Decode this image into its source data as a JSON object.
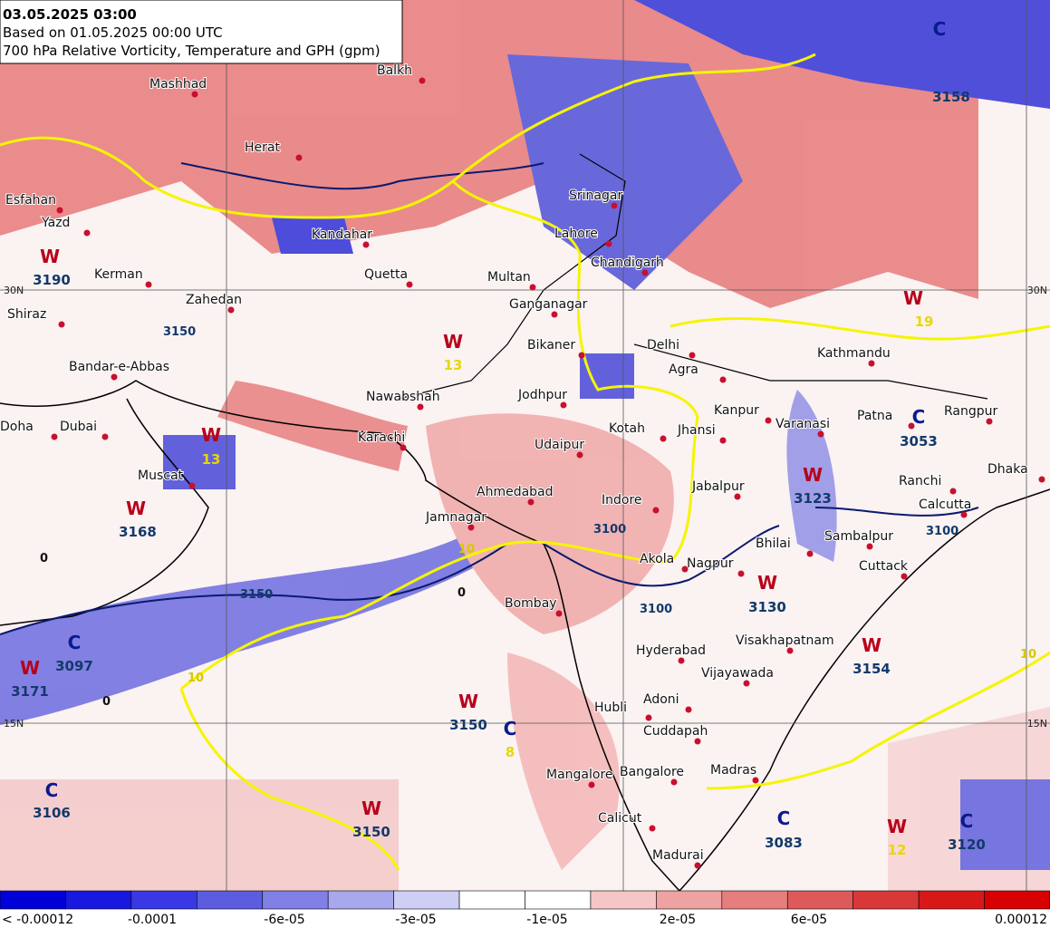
{
  "header": {
    "date": "03.05.2025 03:00",
    "based_on": "Based on 01.05.2025 00:00 UTC",
    "title": "700 hPa Relative Vorticity, Temperature and GPH (gpm)"
  },
  "cities": [
    "Mashhad",
    "Herat",
    "Balkh",
    "Esfahan",
    "Yazd",
    "Kandahar",
    "Quetta",
    "Kerman",
    "Zahedan",
    "Shiraz",
    "Bandar-e-Abbas",
    "Nawabshah",
    "Karachi",
    "Doha",
    "Dubai",
    "Muscat",
    "Multan",
    "Lahore",
    "Srinagar",
    "Chandigarh",
    "Ganganagar",
    "Bikaner",
    "Delhi",
    "Agra",
    "Jodhpur",
    "Kotah",
    "Jhansi",
    "Kanpur",
    "Varanasi",
    "Patna",
    "Rangpur",
    "Kathmandu",
    "Udaipur",
    "Ahmedabad",
    "Jamnagar",
    "Indore",
    "Jabalpur",
    "Bhilai",
    "Sambalpur",
    "Ranchi",
    "Calcutta",
    "Dhaka",
    "Cuttack",
    "Nagpur",
    "Akola",
    "Bombay",
    "Hyderabad",
    "Visakhapatnam",
    "Vijayawada",
    "Hubli",
    "Adoni",
    "Cuddapah",
    "Mangalore",
    "Bangalore",
    "Madras",
    "Calicut",
    "Madurai"
  ],
  "centers": [
    {
      "letter": "W",
      "value": 3190
    },
    {
      "letter": "W",
      "value": 3168
    },
    {
      "letter": "W",
      "value": 13
    },
    {
      "letter": "W",
      "value": 13
    },
    {
      "letter": "W",
      "value": 3123
    },
    {
      "letter": "W",
      "value": 3130
    },
    {
      "letter": "W",
      "value": 3154
    },
    {
      "letter": "W",
      "value": 3150
    },
    {
      "letter": "W",
      "value": 3150
    },
    {
      "letter": "W",
      "value": 12
    },
    {
      "letter": "W",
      "value": 3171
    },
    {
      "letter": "W",
      "value": 19
    },
    {
      "letter": "C",
      "value": 3097
    },
    {
      "letter": "C",
      "value": 3053
    },
    {
      "letter": "C",
      "value": 8
    },
    {
      "letter": "C",
      "value": 3083
    },
    {
      "letter": "C",
      "value": 3106
    },
    {
      "letter": "C",
      "value": 3120
    },
    {
      "letter": "C",
      "value": 3158
    }
  ],
  "contour_labels": [
    3150,
    3100,
    3100,
    3100,
    3150,
    10,
    10,
    10,
    0,
    0,
    0
  ],
  "latitudes": [
    "30N",
    "15N",
    "30N",
    "15N"
  ],
  "colorbar": {
    "colors": [
      "#0000d8",
      "#1818e0",
      "#3838e4",
      "#5c5ce0",
      "#8080e6",
      "#a8a8ee",
      "#cfcff6",
      "#ffffff",
      "#ffffff",
      "#f6c6c6",
      "#eea2a2",
      "#e67e7e",
      "#de5a5a",
      "#d83838",
      "#d81818",
      "#d80000"
    ],
    "labels": [
      "< -0.00012",
      "-0.0001",
      "-6e-05",
      "-3e-05",
      "-1e-05",
      "2e-05",
      "6e-05",
      "0.00012"
    ]
  }
}
